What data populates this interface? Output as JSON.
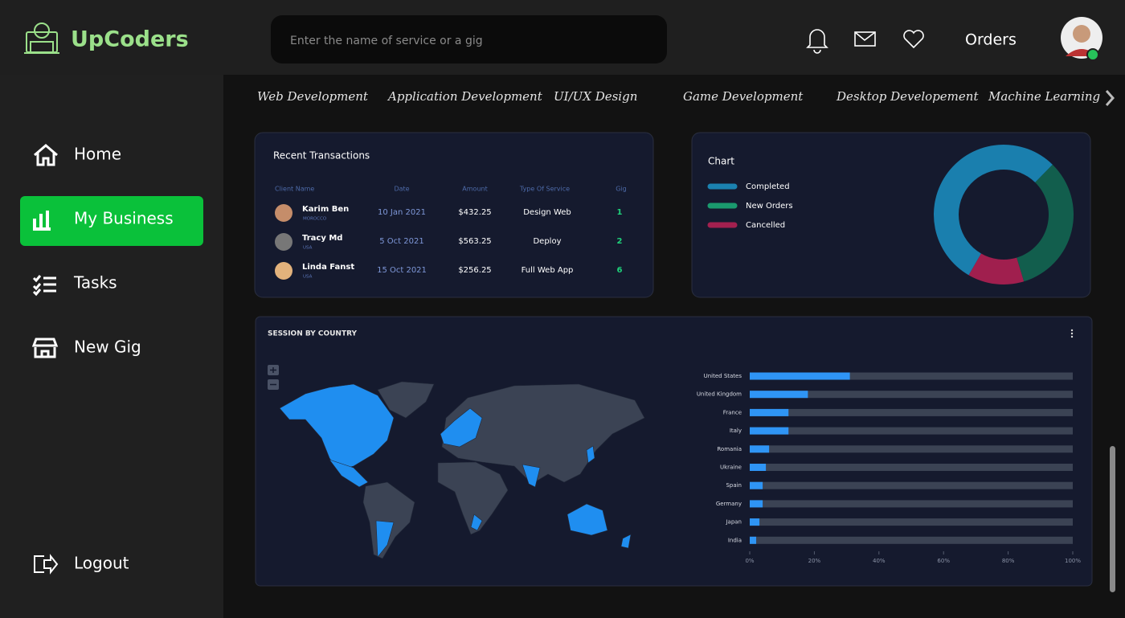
{
  "header": {
    "logo": "UpCoders",
    "search_placeholder": "Enter the name of service or a gig",
    "orders": "Orders"
  },
  "sidebar": {
    "items": [
      "Home",
      "My Business",
      "Tasks",
      "New Gig"
    ],
    "active": 1,
    "logout": "Logout"
  },
  "categories": [
    "Web Development",
    "Application Development",
    "UI/UX Design",
    "Game Development",
    "Desktop Developement",
    "Machine Learning"
  ],
  "transactions": {
    "title": "Recent Transactions",
    "columns": [
      "Client Name",
      "Date",
      "Amount",
      "Type Of Service",
      "Gig"
    ],
    "rows": [
      [
        "Karim Ben",
        "MOROCCO",
        "10 Jan 2021",
        "$432.25",
        "Design Web",
        "1"
      ],
      [
        "Tracy Md",
        "USA",
        "5 Oct 2021",
        "$563.25",
        "Deploy",
        "2"
      ],
      [
        "Linda Fanst",
        "USA",
        "15 Oct 2021",
        "$256.25",
        "Full Web App",
        "6"
      ]
    ]
  },
  "chart_data": [
    {
      "type": "pie",
      "donut": true,
      "title": "Chart",
      "categories": [
        "Completed",
        "New Orders",
        "Cancelled"
      ],
      "values": [
        54,
        33,
        13
      ],
      "colors": [
        "#1a7fae",
        "#125e4d",
        "#a01f4e"
      ],
      "legend_colors": [
        "#1b82b0",
        "#1a9a6e",
        "#a3204f"
      ]
    },
    {
      "type": "bar",
      "orientation": "horizontal",
      "title": "SESSION BY COUNTRY",
      "categories": [
        "United States",
        "United Kingdom",
        "France",
        "Italy",
        "Romania",
        "Ukraine",
        "Spain",
        "Germany",
        "Japan",
        "India"
      ],
      "values": [
        31,
        18,
        12,
        12,
        6,
        5,
        4,
        4,
        3,
        2
      ],
      "color": "#2f95f5",
      "track_color": "#3b4354",
      "xlim": [
        0,
        100
      ],
      "xticks": [
        {
          "value": 0,
          "label": "0%"
        },
        {
          "value": 20,
          "label": "20%"
        },
        {
          "value": 40,
          "label": "40%"
        },
        {
          "value": 60,
          "label": "60%"
        },
        {
          "value": 80,
          "label": "80%"
        },
        {
          "value": 100,
          "label": "100%"
        }
      ]
    }
  ]
}
